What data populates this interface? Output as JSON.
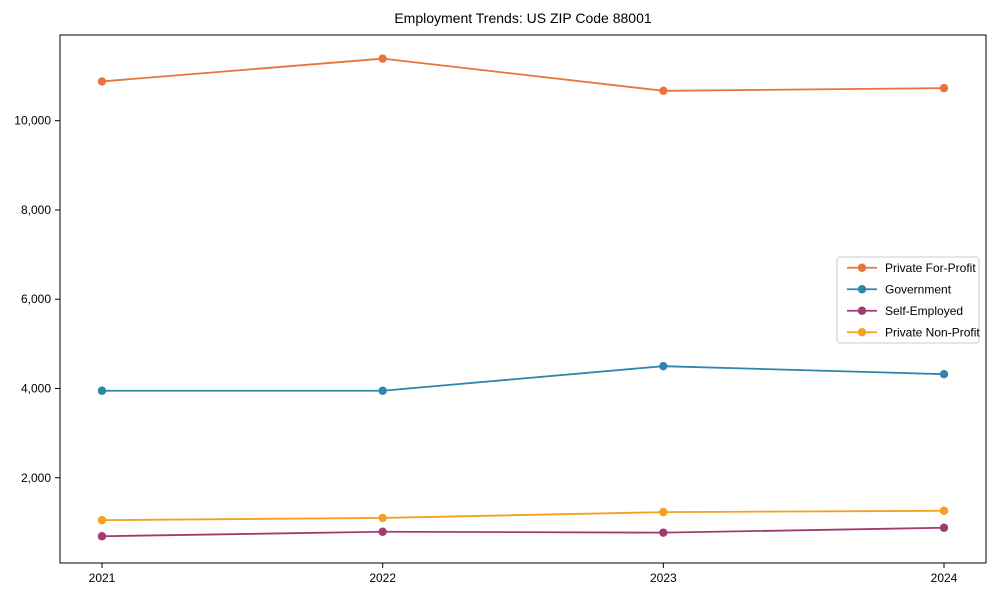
{
  "figure": {
    "background": "#ffffff",
    "axis_color": "#000000",
    "legend_border_color": "#cccccc"
  },
  "chart_data": {
    "type": "line",
    "title": "Employment Trends: US ZIP Code 88001",
    "categories": [
      "2021",
      "2022",
      "2023",
      "2024"
    ],
    "series": [
      {
        "name": "Private For-Profit",
        "color": "#E8743B",
        "values": [
          10880,
          11390,
          10670,
          10730
        ]
      },
      {
        "name": "Government",
        "color": "#2E86AB",
        "values": [
          3950,
          3950,
          4500,
          4320
        ]
      },
      {
        "name": "Self-Employed",
        "color": "#A23B72",
        "values": [
          690,
          790,
          770,
          880
        ]
      },
      {
        "name": "Private Non-Profit",
        "color": "#F5A01E",
        "values": [
          1050,
          1100,
          1230,
          1260
        ]
      }
    ],
    "xlabel": "",
    "ylabel": "",
    "ylim": [
      90,
      11920
    ],
    "yticks": [
      2000,
      4000,
      6000,
      8000,
      10000
    ],
    "ytick_labels": [
      "2,000",
      "4,000",
      "6,000",
      "8,000",
      "10,000"
    ],
    "grid": false,
    "legend_position": "center right",
    "marker": "circle"
  }
}
